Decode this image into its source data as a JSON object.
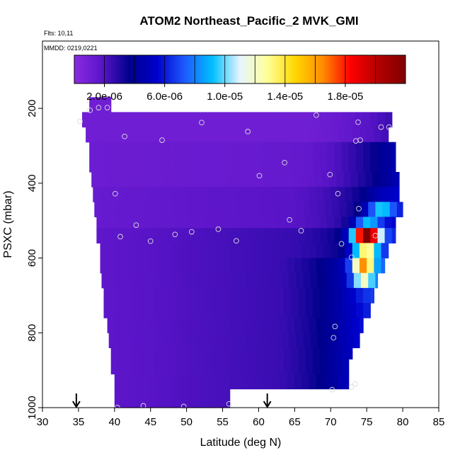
{
  "chart_data": {
    "type": "heatmap",
    "title": "ATOM2 Northeast_Pacific_2 MVK_GMI",
    "flights_label": "Flts: 10,11",
    "dates_label": "MMDD: 0219,0221",
    "xlabel": "Latitude (deg N)",
    "ylabel": "PSXC (mbar)",
    "xlim": [
      30,
      85
    ],
    "ylim": [
      1000,
      20
    ],
    "x_ticks": [
      "30",
      "35",
      "40",
      "45",
      "50",
      "55",
      "60",
      "65",
      "70",
      "75",
      "80",
      "85"
    ],
    "y_ticks": [
      "200",
      "400",
      "600",
      "800",
      "1000"
    ],
    "colorbar": {
      "range": [
        0,
        2.2e-05
      ],
      "ticks": [
        "2.0e-06",
        "6.0e-06",
        "1.0e-05",
        "1.4e-05",
        "1.8e-05"
      ],
      "tick_values": [
        2e-06,
        6e-06,
        1e-05,
        1.4e-05,
        1.8e-05
      ],
      "colors": [
        "#8a2be2",
        "#5a14c8",
        "#00008b",
        "#0000cd",
        "#1e5aff",
        "#00bfff",
        "#e6f5ff",
        "#ffff99",
        "#ffd700",
        "#ff8c00",
        "#ff0000",
        "#b40000",
        "#800000"
      ]
    },
    "arrow_latitudes": [
      34.7,
      61.2
    ],
    "layers": [
      {
        "p_top": 170,
        "p_bot": 210,
        "lat_min": 36.5,
        "lat_max": 39.5
      },
      {
        "p_top": 210,
        "p_bot": 250,
        "lat_min": 35.5,
        "lat_max": 78.5
      },
      {
        "p_top": 250,
        "p_bot": 290,
        "lat_min": 36,
        "lat_max": 78
      },
      {
        "p_top": 290,
        "p_bot": 330,
        "lat_min": 36.5,
        "lat_max": 79
      },
      {
        "p_top": 330,
        "p_bot": 370,
        "lat_min": 36.5,
        "lat_max": 79
      },
      {
        "p_top": 370,
        "p_bot": 410,
        "lat_min": 36.8,
        "lat_max": 79.5
      },
      {
        "p_top": 410,
        "p_bot": 450,
        "lat_min": 37,
        "lat_max": 79.5
      },
      {
        "p_top": 450,
        "p_bot": 490,
        "lat_min": 37.2,
        "lat_max": 80
      },
      {
        "p_top": 490,
        "p_bot": 520,
        "lat_min": 37.5,
        "lat_max": 79
      },
      {
        "p_top": 520,
        "p_bot": 560,
        "lat_min": 37.5,
        "lat_max": 79
      },
      {
        "p_top": 560,
        "p_bot": 600,
        "lat_min": 38,
        "lat_max": 78
      },
      {
        "p_top": 600,
        "p_bot": 640,
        "lat_min": 38,
        "lat_max": 77.5
      },
      {
        "p_top": 640,
        "p_bot": 680,
        "lat_min": 38.2,
        "lat_max": 76.5
      },
      {
        "p_top": 680,
        "p_bot": 720,
        "lat_min": 38.5,
        "lat_max": 76
      },
      {
        "p_top": 720,
        "p_bot": 760,
        "lat_min": 38.5,
        "lat_max": 75.5
      },
      {
        "p_top": 760,
        "p_bot": 800,
        "lat_min": 39,
        "lat_max": 74.5
      },
      {
        "p_top": 800,
        "p_bot": 840,
        "lat_min": 39.2,
        "lat_max": 74
      },
      {
        "p_top": 840,
        "p_bot": 870,
        "lat_min": 39.5,
        "lat_max": 73
      },
      {
        "p_top": 870,
        "p_bot": 910,
        "lat_min": 39.5,
        "lat_max": 72.5
      },
      {
        "p_top": 910,
        "p_bot": 950,
        "lat_min": 40,
        "lat_max": 72.5
      },
      {
        "p_top": 950,
        "p_bot": 1010,
        "lat_min": 40,
        "lat_max": 56
      }
    ],
    "hotspots": [
      {
        "lat": 75,
        "p": 545,
        "sx": 1.8,
        "sp": 35,
        "amp": 1.9e-05
      },
      {
        "lat": 74.5,
        "p": 630,
        "sx": 1.5,
        "sp": 40,
        "amp": 1.1e-05
      },
      {
        "lat": 77,
        "p": 470,
        "sx": 1.8,
        "sp": 25,
        "amp": 5e-06
      }
    ],
    "observations": [
      {
        "lat": 35.2,
        "p": 235
      },
      {
        "lat": 36.6,
        "p": 205
      },
      {
        "lat": 37.8,
        "p": 198
      },
      {
        "lat": 39,
        "p": 198
      },
      {
        "lat": 41.4,
        "p": 275
      },
      {
        "lat": 46.6,
        "p": 285
      },
      {
        "lat": 52.1,
        "p": 238
      },
      {
        "lat": 58.5,
        "p": 262
      },
      {
        "lat": 68,
        "p": 218
      },
      {
        "lat": 73.8,
        "p": 237
      },
      {
        "lat": 77,
        "p": 250
      },
      {
        "lat": 78.1,
        "p": 250
      },
      {
        "lat": 73.5,
        "p": 287
      },
      {
        "lat": 74.1,
        "p": 285
      },
      {
        "lat": 63.6,
        "p": 345
      },
      {
        "lat": 60.1,
        "p": 380
      },
      {
        "lat": 69.9,
        "p": 377
      },
      {
        "lat": 40.1,
        "p": 428
      },
      {
        "lat": 71,
        "p": 428
      },
      {
        "lat": 73.9,
        "p": 468
      },
      {
        "lat": 43,
        "p": 512
      },
      {
        "lat": 64.3,
        "p": 498
      },
      {
        "lat": 65.9,
        "p": 527
      },
      {
        "lat": 40.8,
        "p": 543
      },
      {
        "lat": 48.4,
        "p": 537
      },
      {
        "lat": 50.7,
        "p": 530
      },
      {
        "lat": 54.4,
        "p": 523
      },
      {
        "lat": 45,
        "p": 555
      },
      {
        "lat": 56.9,
        "p": 554
      },
      {
        "lat": 71.5,
        "p": 562
      },
      {
        "lat": 76.2,
        "p": 540
      },
      {
        "lat": 72.9,
        "p": 598
      },
      {
        "lat": 70.6,
        "p": 783
      },
      {
        "lat": 70.4,
        "p": 813
      },
      {
        "lat": 73.4,
        "p": 937
      },
      {
        "lat": 72.9,
        "p": 945
      },
      {
        "lat": 70.2,
        "p": 952
      },
      {
        "lat": 55.9,
        "p": 990
      },
      {
        "lat": 44,
        "p": 995
      },
      {
        "lat": 49.6,
        "p": 997
      },
      {
        "lat": 40.4,
        "p": 1000
      }
    ]
  }
}
